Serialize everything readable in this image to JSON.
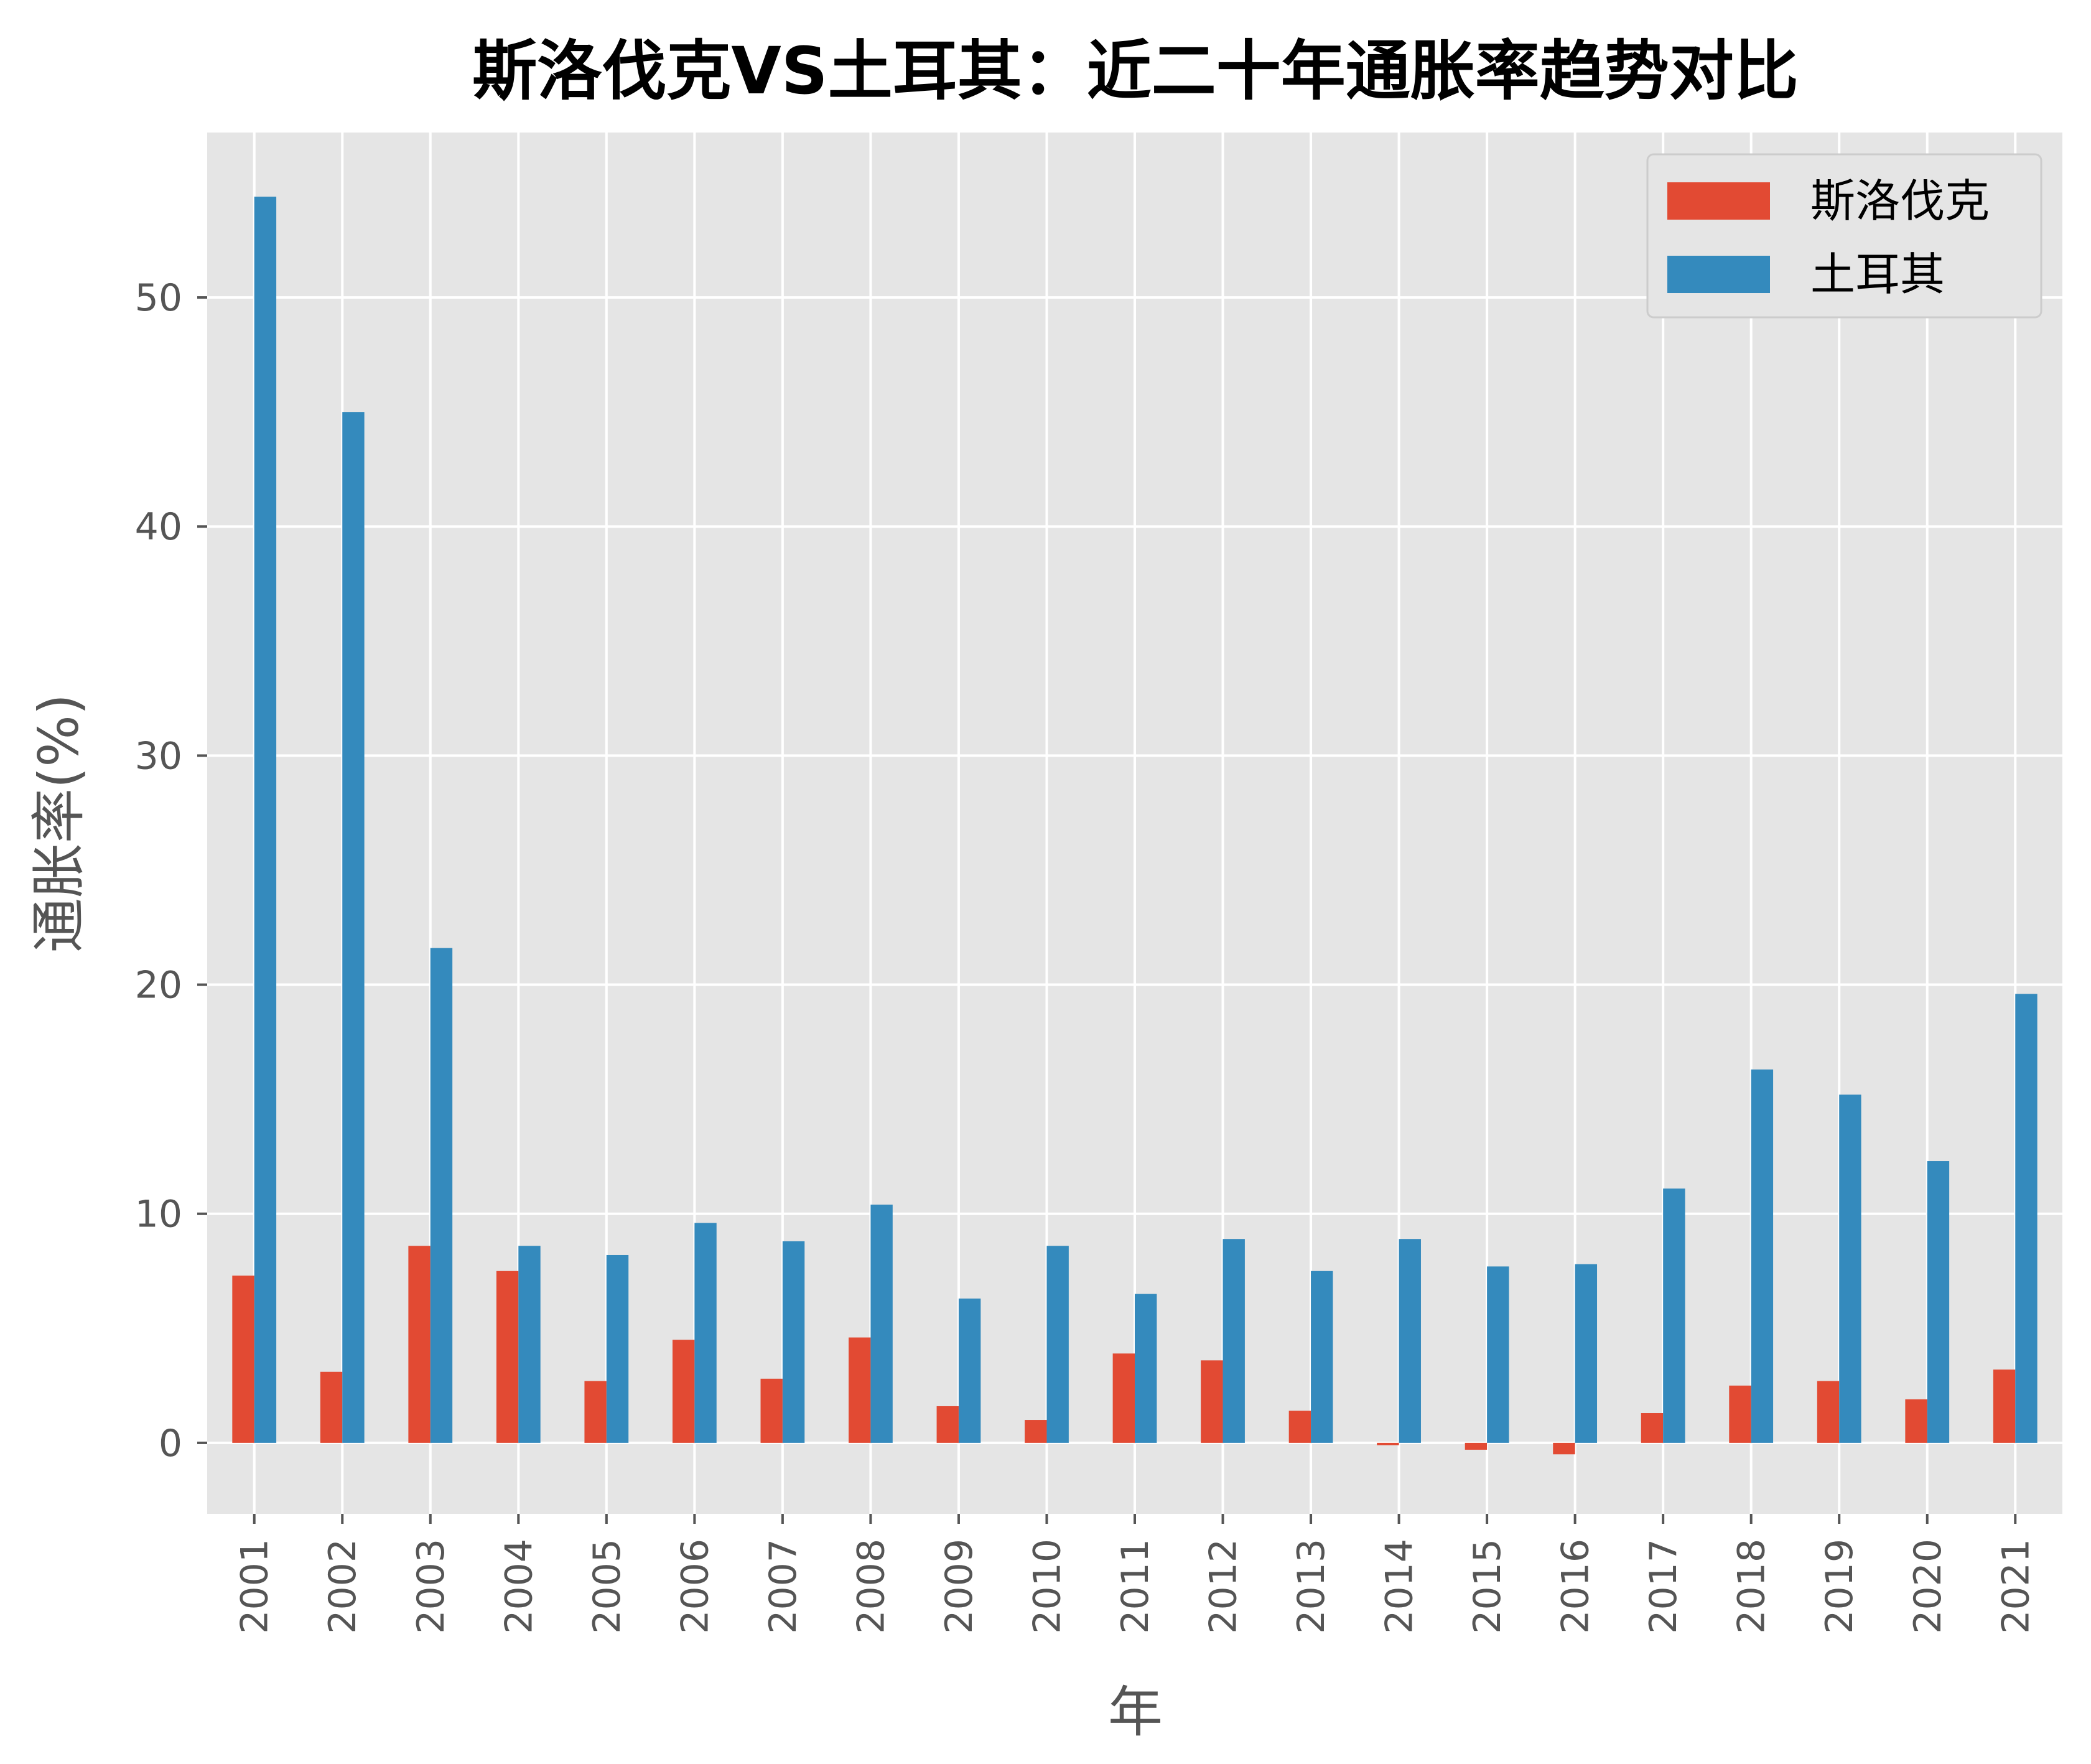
{
  "chart_data": {
    "type": "bar",
    "title": "斯洛伐克VS土耳其：近二十年通胀率趋势对比",
    "xlabel": "年",
    "ylabel": "通胀率(%)",
    "categories": [
      "2001",
      "2002",
      "2003",
      "2004",
      "2005",
      "2006",
      "2007",
      "2008",
      "2009",
      "2010",
      "2011",
      "2012",
      "2013",
      "2014",
      "2015",
      "2016",
      "2017",
      "2018",
      "2019",
      "2020",
      "2021"
    ],
    "yticks": [
      0,
      10,
      20,
      30,
      40,
      50
    ],
    "ylim": [
      -3.1,
      57.2
    ],
    "grid": true,
    "legend_position": "top-right",
    "series": [
      {
        "name": "斯洛伐克",
        "color": "#E24A33",
        "values": [
          7.3,
          3.1,
          8.6,
          7.5,
          2.7,
          4.5,
          2.8,
          4.6,
          1.6,
          1.0,
          3.9,
          3.6,
          1.4,
          -0.1,
          -0.3,
          -0.5,
          1.3,
          2.5,
          2.7,
          1.9,
          3.2
        ]
      },
      {
        "name": "土耳其",
        "color": "#348ABD",
        "values": [
          54.4,
          45.0,
          21.6,
          8.6,
          8.2,
          9.6,
          8.8,
          10.4,
          6.3,
          8.6,
          6.5,
          8.9,
          7.5,
          8.9,
          7.7,
          7.8,
          11.1,
          16.3,
          15.2,
          12.3,
          19.6
        ]
      }
    ]
  }
}
